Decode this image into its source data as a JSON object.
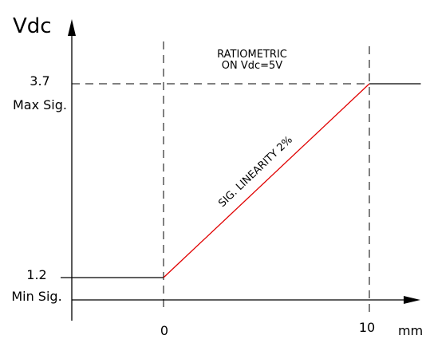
{
  "chart_data": {
    "type": "line",
    "ylabel": "Vdc",
    "xlabel": "mm",
    "xlim": [
      -5,
      12.5
    ],
    "ylim": [
      0.13,
      4.7
    ],
    "x_ticks": [
      {
        "value": 0,
        "label": "0"
      },
      {
        "value": 10,
        "label": "10"
      }
    ],
    "y_ticks": [
      {
        "value": 3.7,
        "label": "3.7",
        "sublabel": "Max Sig."
      },
      {
        "value": 1.2,
        "label": "1.2",
        "sublabel": "Min Sig."
      }
    ],
    "series": [
      {
        "points": [
          [
            -5,
            1.2
          ],
          [
            0,
            1.2
          ]
        ],
        "color": "#000000"
      },
      {
        "points": [
          [
            0,
            1.2
          ],
          [
            10,
            3.7
          ]
        ],
        "color": "#e00000"
      },
      {
        "points": [
          [
            10,
            3.7
          ],
          [
            12.5,
            3.7
          ]
        ],
        "color": "#000000"
      }
    ],
    "annotations": [
      {
        "lines": [
          "RATIOMETRIC",
          "ON Vdc=5V"
        ]
      },
      {
        "text": "SIG. LINEARITY 2%",
        "color": "#000000"
      }
    ],
    "grid": false
  }
}
